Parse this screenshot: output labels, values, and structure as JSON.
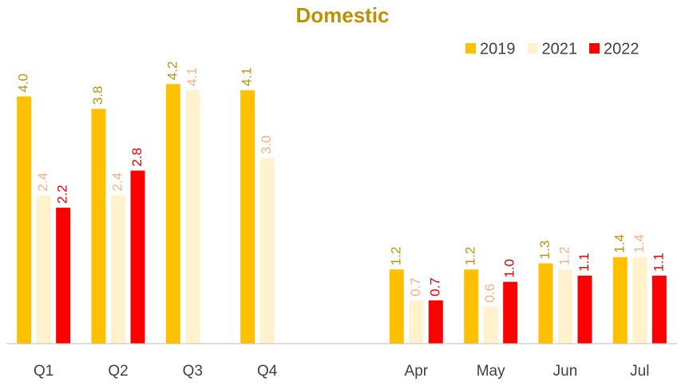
{
  "chart_data": {
    "type": "bar",
    "title": "Domestic",
    "categories": [
      "Q1",
      "Q2",
      "Q3",
      "Q4",
      null,
      "Apr",
      "May",
      "Jun",
      "Jul"
    ],
    "series": [
      {
        "name": "2019",
        "color": "#ffc000",
        "label_color": "#b8960c",
        "values": [
          4.0,
          3.8,
          4.2,
          4.1,
          null,
          1.2,
          1.2,
          1.3,
          1.4
        ],
        "value_labels": [
          "4.0",
          "3.8",
          "4.2",
          "4.1",
          null,
          "1.2",
          "1.2",
          "1.3",
          "1.4"
        ]
      },
      {
        "name": "2021",
        "color": "#fff2cc",
        "label_color": "#f4b183",
        "values": [
          2.4,
          2.4,
          4.1,
          3.0,
          null,
          0.7,
          0.6,
          1.2,
          1.4
        ],
        "value_labels": [
          "2.4",
          "2.4",
          "4.1",
          "3.0",
          null,
          "0.7",
          "0.6",
          "1.2",
          "1.4"
        ]
      },
      {
        "name": "2022",
        "color": "#ff0000",
        "label_color": "#e00000",
        "values": [
          2.2,
          2.8,
          null,
          null,
          null,
          0.7,
          1.0,
          1.1,
          1.1
        ],
        "value_labels": [
          "2.2",
          "2.8",
          null,
          null,
          null,
          "0.7",
          "1.0",
          "1.1",
          "1.1"
        ]
      }
    ],
    "ylim": [
      0,
      4.5
    ],
    "legend": "top-right"
  }
}
